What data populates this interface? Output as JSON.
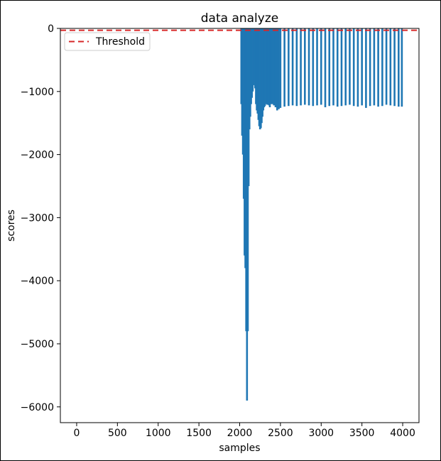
{
  "chart_data": {
    "type": "bar",
    "title": "data analyze",
    "xlabel": "samples",
    "ylabel": "scores",
    "xlim": [
      -200,
      4200
    ],
    "ylim": [
      -6250,
      0
    ],
    "xticks": [
      0,
      500,
      1000,
      1500,
      2000,
      2500,
      3000,
      3500,
      4000
    ],
    "yticks": [
      0,
      -1000,
      -2000,
      -3000,
      -4000,
      -5000,
      -6000
    ],
    "xtick_labels": [
      "0",
      "500",
      "1000",
      "1500",
      "2000",
      "2500",
      "3000",
      "3500",
      "4000"
    ],
    "ytick_labels": [
      "0",
      "−1000",
      "−2000",
      "−3000",
      "−4000",
      "−5000",
      "−6000"
    ],
    "bar_color": "#1f77b4",
    "threshold": {
      "name": "Threshold",
      "value": -30,
      "color": "#d62728",
      "style": "dashed"
    },
    "legend": {
      "entries": [
        "Threshold"
      ],
      "placement": "upper-left"
    },
    "series": [
      {
        "x": [
          2020,
          2030,
          2040,
          2050,
          2060,
          2070,
          2080,
          2090,
          2100,
          2110,
          2120,
          2130,
          2140,
          2150,
          2160,
          2170,
          2180,
          2190,
          2200,
          2210,
          2220,
          2230,
          2240,
          2250,
          2260,
          2270,
          2280,
          2290,
          2300,
          2310,
          2320,
          2330,
          2340,
          2350,
          2360,
          2370,
          2380,
          2390,
          2400,
          2420,
          2440,
          2460,
          2480,
          2500,
          2550,
          2600,
          2650,
          2700,
          2750,
          2800,
          2850,
          2900,
          2950,
          3000,
          3050,
          3100,
          3150,
          3200,
          3250,
          3300,
          3350,
          3400,
          3450,
          3500,
          3550,
          3600,
          3650,
          3700,
          3750,
          3800,
          3850,
          3900,
          3950,
          3990
        ],
        "values": [
          -1200,
          -1700,
          -2000,
          -2700,
          -3600,
          -3800,
          -4800,
          -5900,
          -4800,
          -2500,
          -1600,
          -1400,
          -1200,
          -1100,
          -1000,
          -900,
          -850,
          -950,
          -1200,
          -1300,
          -1350,
          -1450,
          -1550,
          -1600,
          -1580,
          -1500,
          -1400,
          -1300,
          -1250,
          -1230,
          -1200,
          -1200,
          -1210,
          -1200,
          -1220,
          -1250,
          -1200,
          -1200,
          -1200,
          -1220,
          -1250,
          -1300,
          -1280,
          -1260,
          -1240,
          -1230,
          -1220,
          -1230,
          -1220,
          -1210,
          -1220,
          -1230,
          -1220,
          -1210,
          -1250,
          -1230,
          -1220,
          -1240,
          -1230,
          -1220,
          -1210,
          -1230,
          -1240,
          -1220,
          -1260,
          -1230,
          -1220,
          -1240,
          -1230,
          -1210,
          -1220,
          -1230,
          -1240,
          -1240
        ]
      }
    ]
  }
}
